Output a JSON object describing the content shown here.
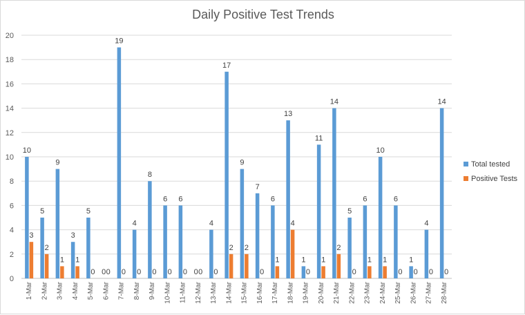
{
  "chart_data": {
    "type": "bar",
    "title": "Daily Positive Test Trends",
    "xlabel": "",
    "ylabel": "",
    "ylim": [
      0,
      20
    ],
    "yticks": [
      0,
      2,
      4,
      6,
      8,
      10,
      12,
      14,
      16,
      18,
      20
    ],
    "grid": true,
    "legend_position": "right",
    "categories": [
      "1-Mar",
      "2-Mar",
      "3-Mar",
      "4-Mar",
      "5-Mar",
      "6-Mar",
      "7-Mar",
      "8-Mar",
      "9-Mar",
      "10-Mar",
      "11-Mar",
      "12-Mar",
      "13-Mar",
      "14-Mar",
      "15-Mar",
      "16-Mar",
      "17-Mar",
      "18-Mar",
      "19-Mar",
      "20-Mar",
      "21-Mar",
      "22-Mar",
      "23-Mar",
      "24-Mar",
      "25-Mar",
      "26-Mar",
      "27-Mar",
      "28-Mar"
    ],
    "series": [
      {
        "name": "Total tested",
        "color": "#5b9bd5",
        "values": [
          10,
          5,
          9,
          3,
          5,
          0,
          19,
          4,
          8,
          6,
          6,
          0,
          4,
          17,
          9,
          7,
          6,
          13,
          1,
          11,
          14,
          5,
          6,
          10,
          6,
          1,
          4,
          14
        ]
      },
      {
        "name": "Positive Tests",
        "color": "#ed7d31",
        "values": [
          3,
          2,
          1,
          1,
          0,
          0,
          0,
          0,
          0,
          0,
          0,
          0,
          0,
          2,
          2,
          0,
          1,
          4,
          0,
          1,
          2,
          0,
          1,
          1,
          0,
          0,
          0,
          0
        ]
      }
    ]
  }
}
